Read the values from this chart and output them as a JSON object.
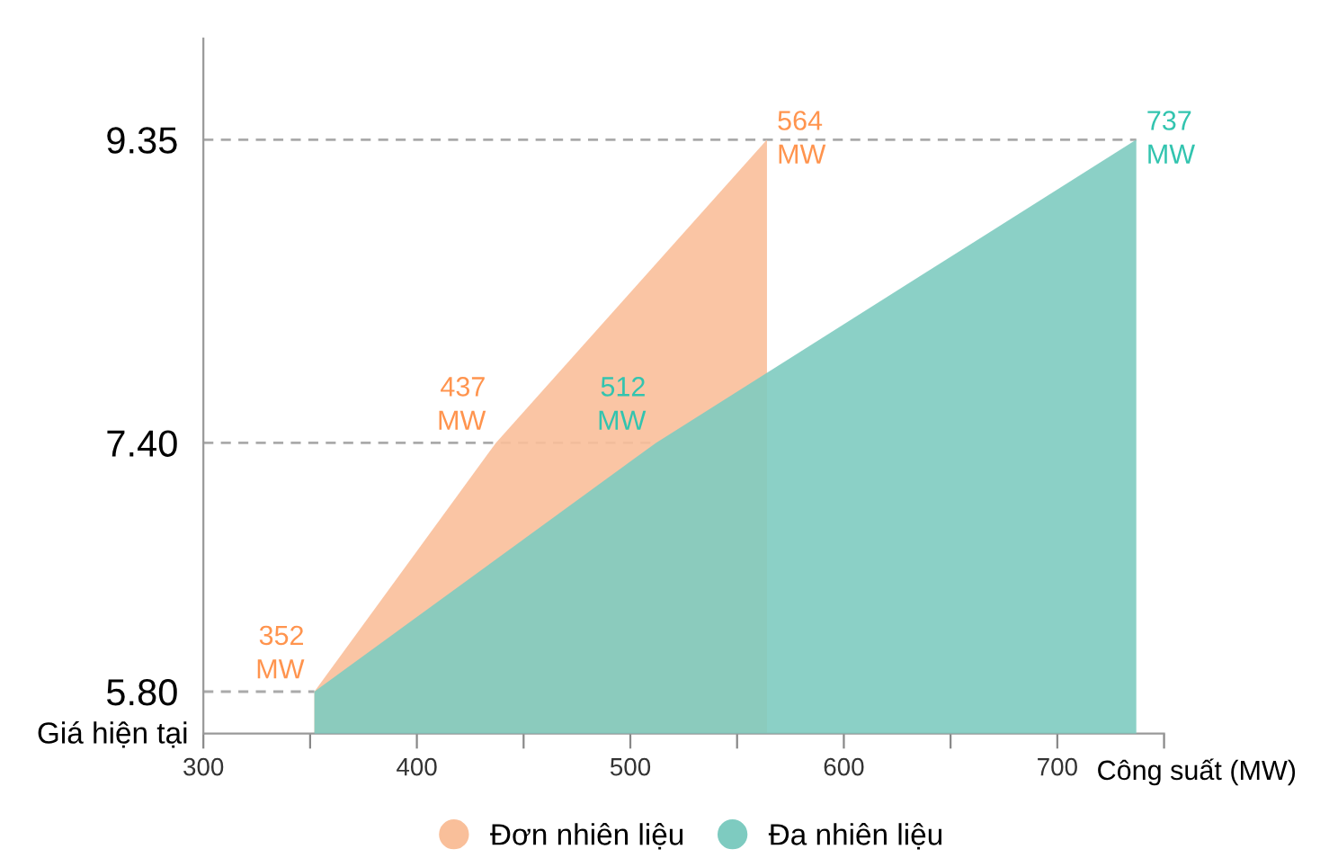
{
  "chart_data": {
    "type": "area",
    "xlabel": "Công suất (MW)",
    "series": [
      {
        "name": "Đơn nhiên liệu",
        "color": "#f9bf9a",
        "x": [
          352,
          437,
          564
        ],
        "values": [
          5.8,
          7.4,
          9.35
        ]
      },
      {
        "name": "Đa nhiên liệu",
        "color": "#7ecbc0",
        "x": [
          352,
          512,
          737
        ],
        "values": [
          5.8,
          7.4,
          9.35
        ]
      }
    ],
    "xlim": [
      300,
      750
    ],
    "xticks": [
      300,
      {
        "value": 350,
        "label": null
      },
      400,
      {
        "value": 450,
        "label": null
      },
      500,
      {
        "value": 550,
        "label": null
      },
      600,
      {
        "value": 650,
        "label": null
      },
      700,
      {
        "value": 750,
        "label": null
      }
    ],
    "ylim": [
      5.53,
      10
    ],
    "yticks": [
      {
        "value": 5.8,
        "label": "5.80"
      },
      {
        "value": 7.4,
        "label": "7.40"
      },
      9.35
    ],
    "ref_lines": [
      {
        "axis": "y",
        "value": 5.8,
        "color": "#aaaaaa",
        "line_style": "dashed"
      },
      {
        "axis": "y",
        "value": 7.4,
        "color": "#aaaaaa",
        "line_style": "dashed"
      },
      {
        "axis": "y",
        "value": 9.35,
        "color": "#aaaaaa",
        "line_style": "dashed"
      }
    ],
    "annotations": [
      {
        "text": "352\nMW",
        "x": 352,
        "y": 5.8
      },
      {
        "text": "437\nMW",
        "x": 437,
        "y": 7.4
      },
      {
        "text": "564\nMW",
        "x": 564,
        "y": 9.35
      },
      {
        "text": "512\nMW",
        "x": 512,
        "y": 7.4
      },
      {
        "text": "737\nMW",
        "x": 737,
        "y": 9.35
      },
      "Giá hiện tại"
    ],
    "legend": "bottom",
    "grid": false
  }
}
